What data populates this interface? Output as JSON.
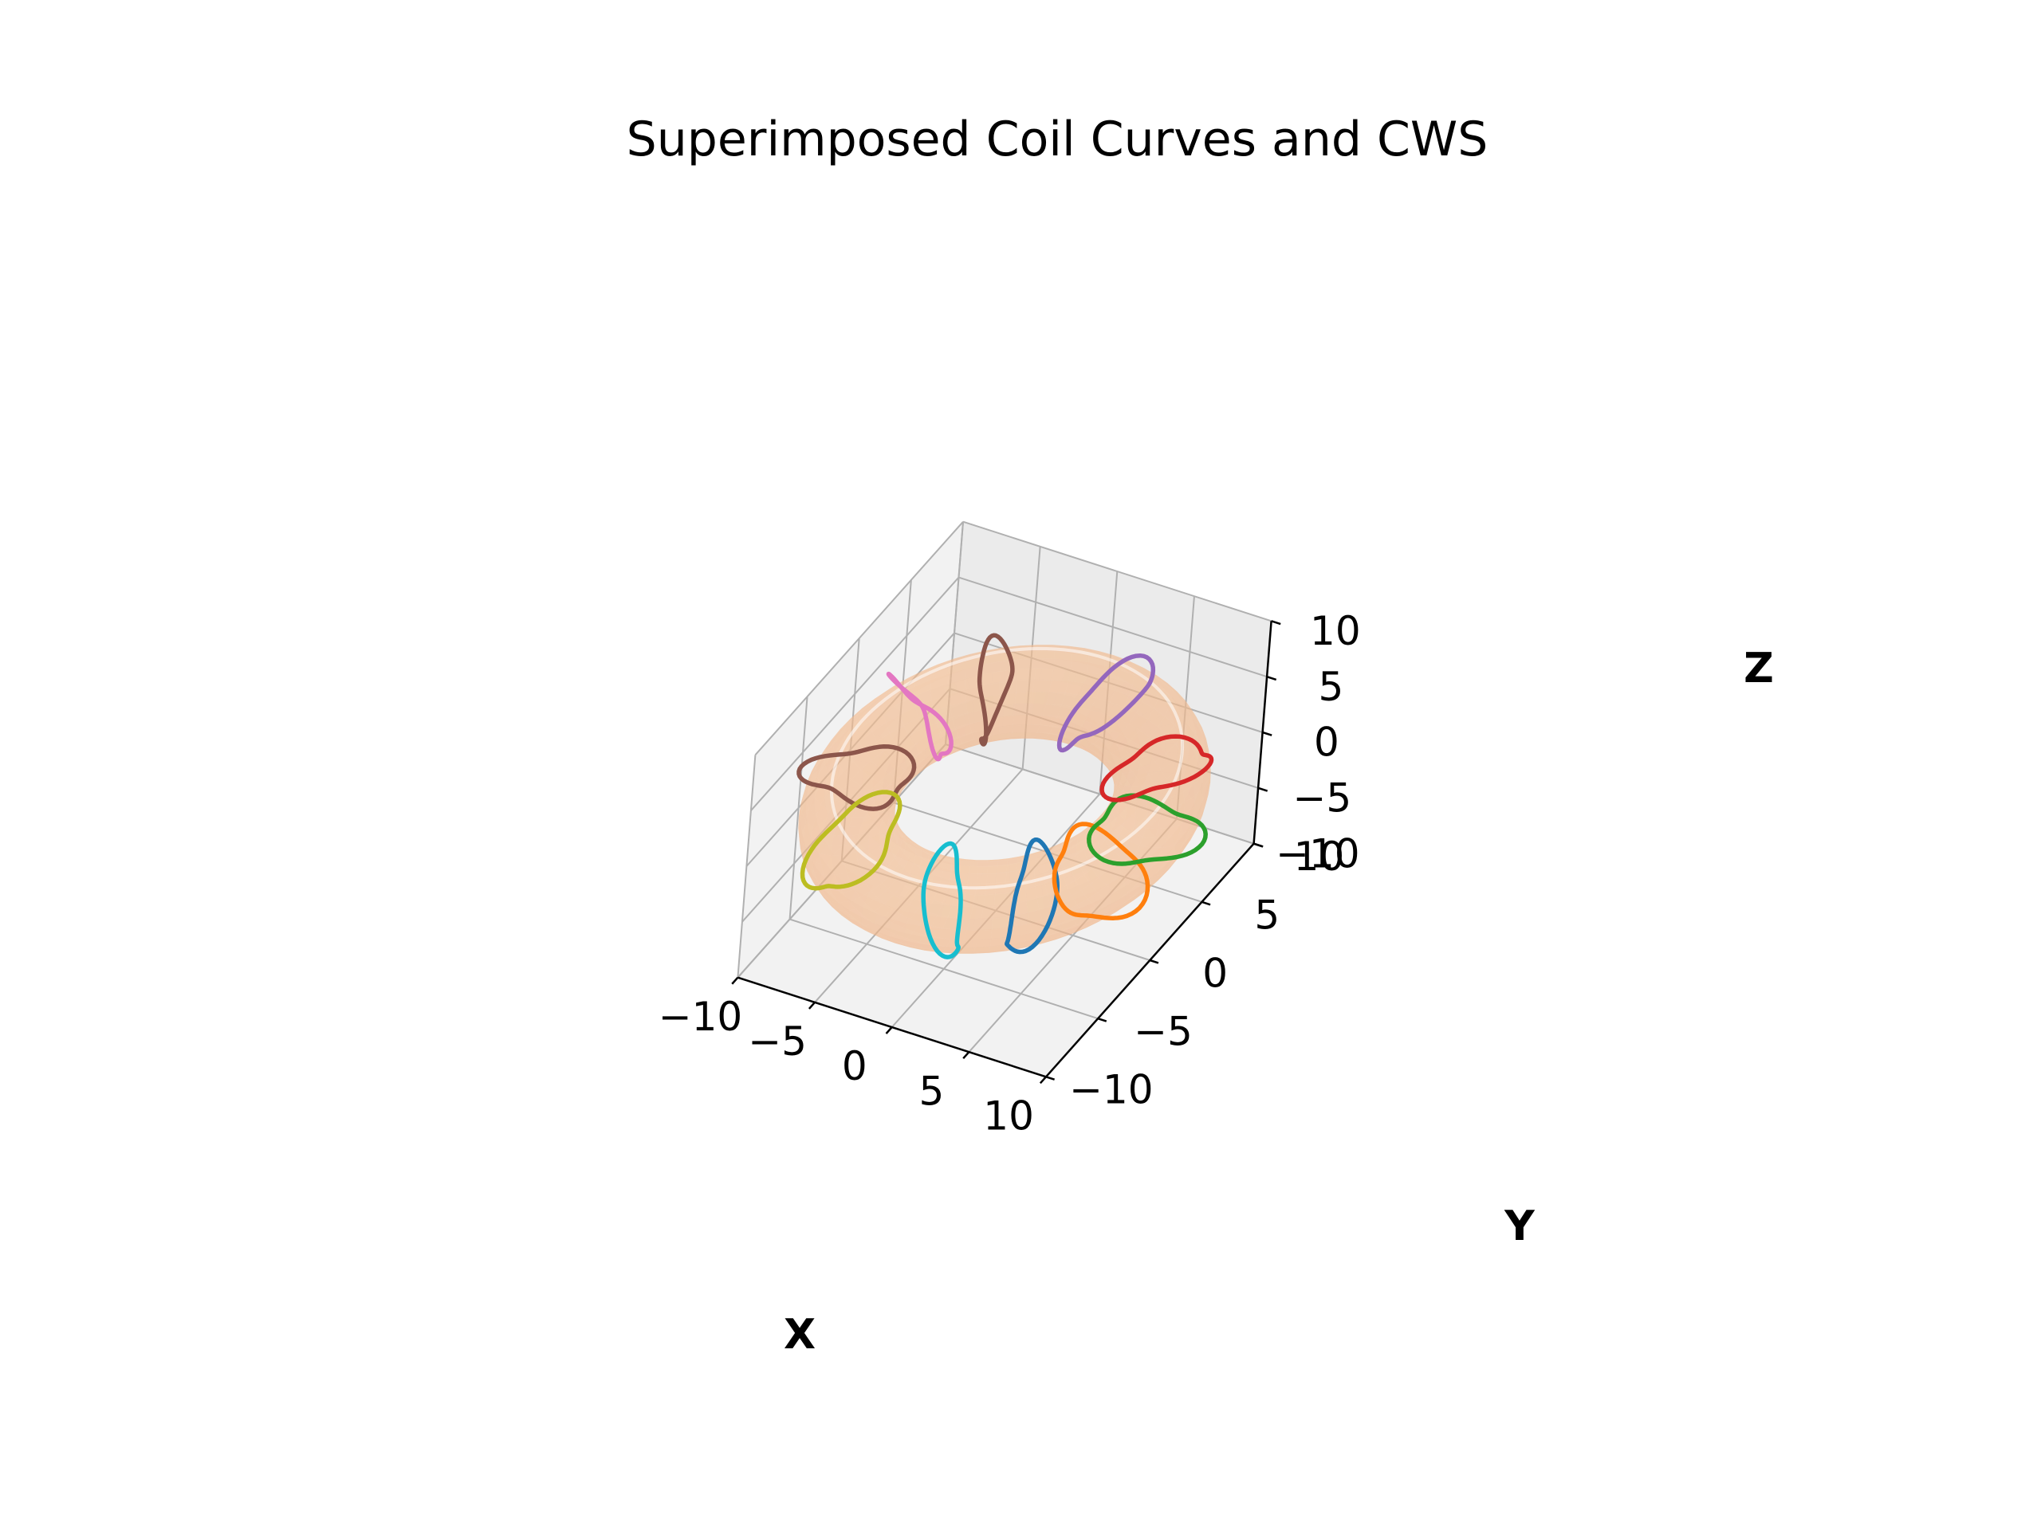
{
  "chart_data": {
    "type": "line",
    "title": "Superimposed Coil Curves and CWS",
    "xlabel": "X",
    "ylabel": "Y",
    "zlabel": "Z",
    "xlim": [
      -10,
      10
    ],
    "ylim": [
      -10,
      10
    ],
    "zlim": [
      -10,
      10
    ],
    "x_ticks": [
      {
        "v": -10,
        "label": "−10"
      },
      {
        "v": -5,
        "label": "−5"
      },
      {
        "v": 0,
        "label": "0"
      },
      {
        "v": 5,
        "label": "5"
      },
      {
        "v": 10,
        "label": "10"
      }
    ],
    "y_ticks": [
      {
        "v": -10,
        "label": "−10"
      },
      {
        "v": -5,
        "label": "−5"
      },
      {
        "v": 0,
        "label": "0"
      },
      {
        "v": 5,
        "label": "5"
      },
      {
        "v": 10,
        "label": "10"
      }
    ],
    "z_ticks": [
      {
        "v": -10,
        "label": "−10"
      },
      {
        "v": -5,
        "label": "−5"
      },
      {
        "v": 0,
        "label": "0"
      },
      {
        "v": 5,
        "label": "5"
      },
      {
        "v": 10,
        "label": "10"
      }
    ],
    "grid": true,
    "surface": {
      "major_radius": 8.5,
      "minor_radius": 2.6,
      "color": "#f4b183",
      "opacity": 0.55
    },
    "coils": [
      {
        "phi_deg": 313,
        "color": "#1f77b4"
      },
      {
        "phi_deg": 338,
        "color": "#ff7f0e"
      },
      {
        "phi_deg": 5,
        "color": "#2ca02c"
      },
      {
        "phi_deg": 40,
        "color": "#d62728"
      },
      {
        "phi_deg": 85,
        "color": "#9467bd"
      },
      {
        "phi_deg": 130,
        "color": "#8c564b"
      },
      {
        "phi_deg": 155,
        "color": "#e377c2"
      },
      {
        "phi_deg": 190,
        "color": "#8c564b"
      },
      {
        "phi_deg": 228,
        "color": "#bcbd22"
      },
      {
        "phi_deg": 282,
        "color": "#17becf"
      }
    ]
  }
}
